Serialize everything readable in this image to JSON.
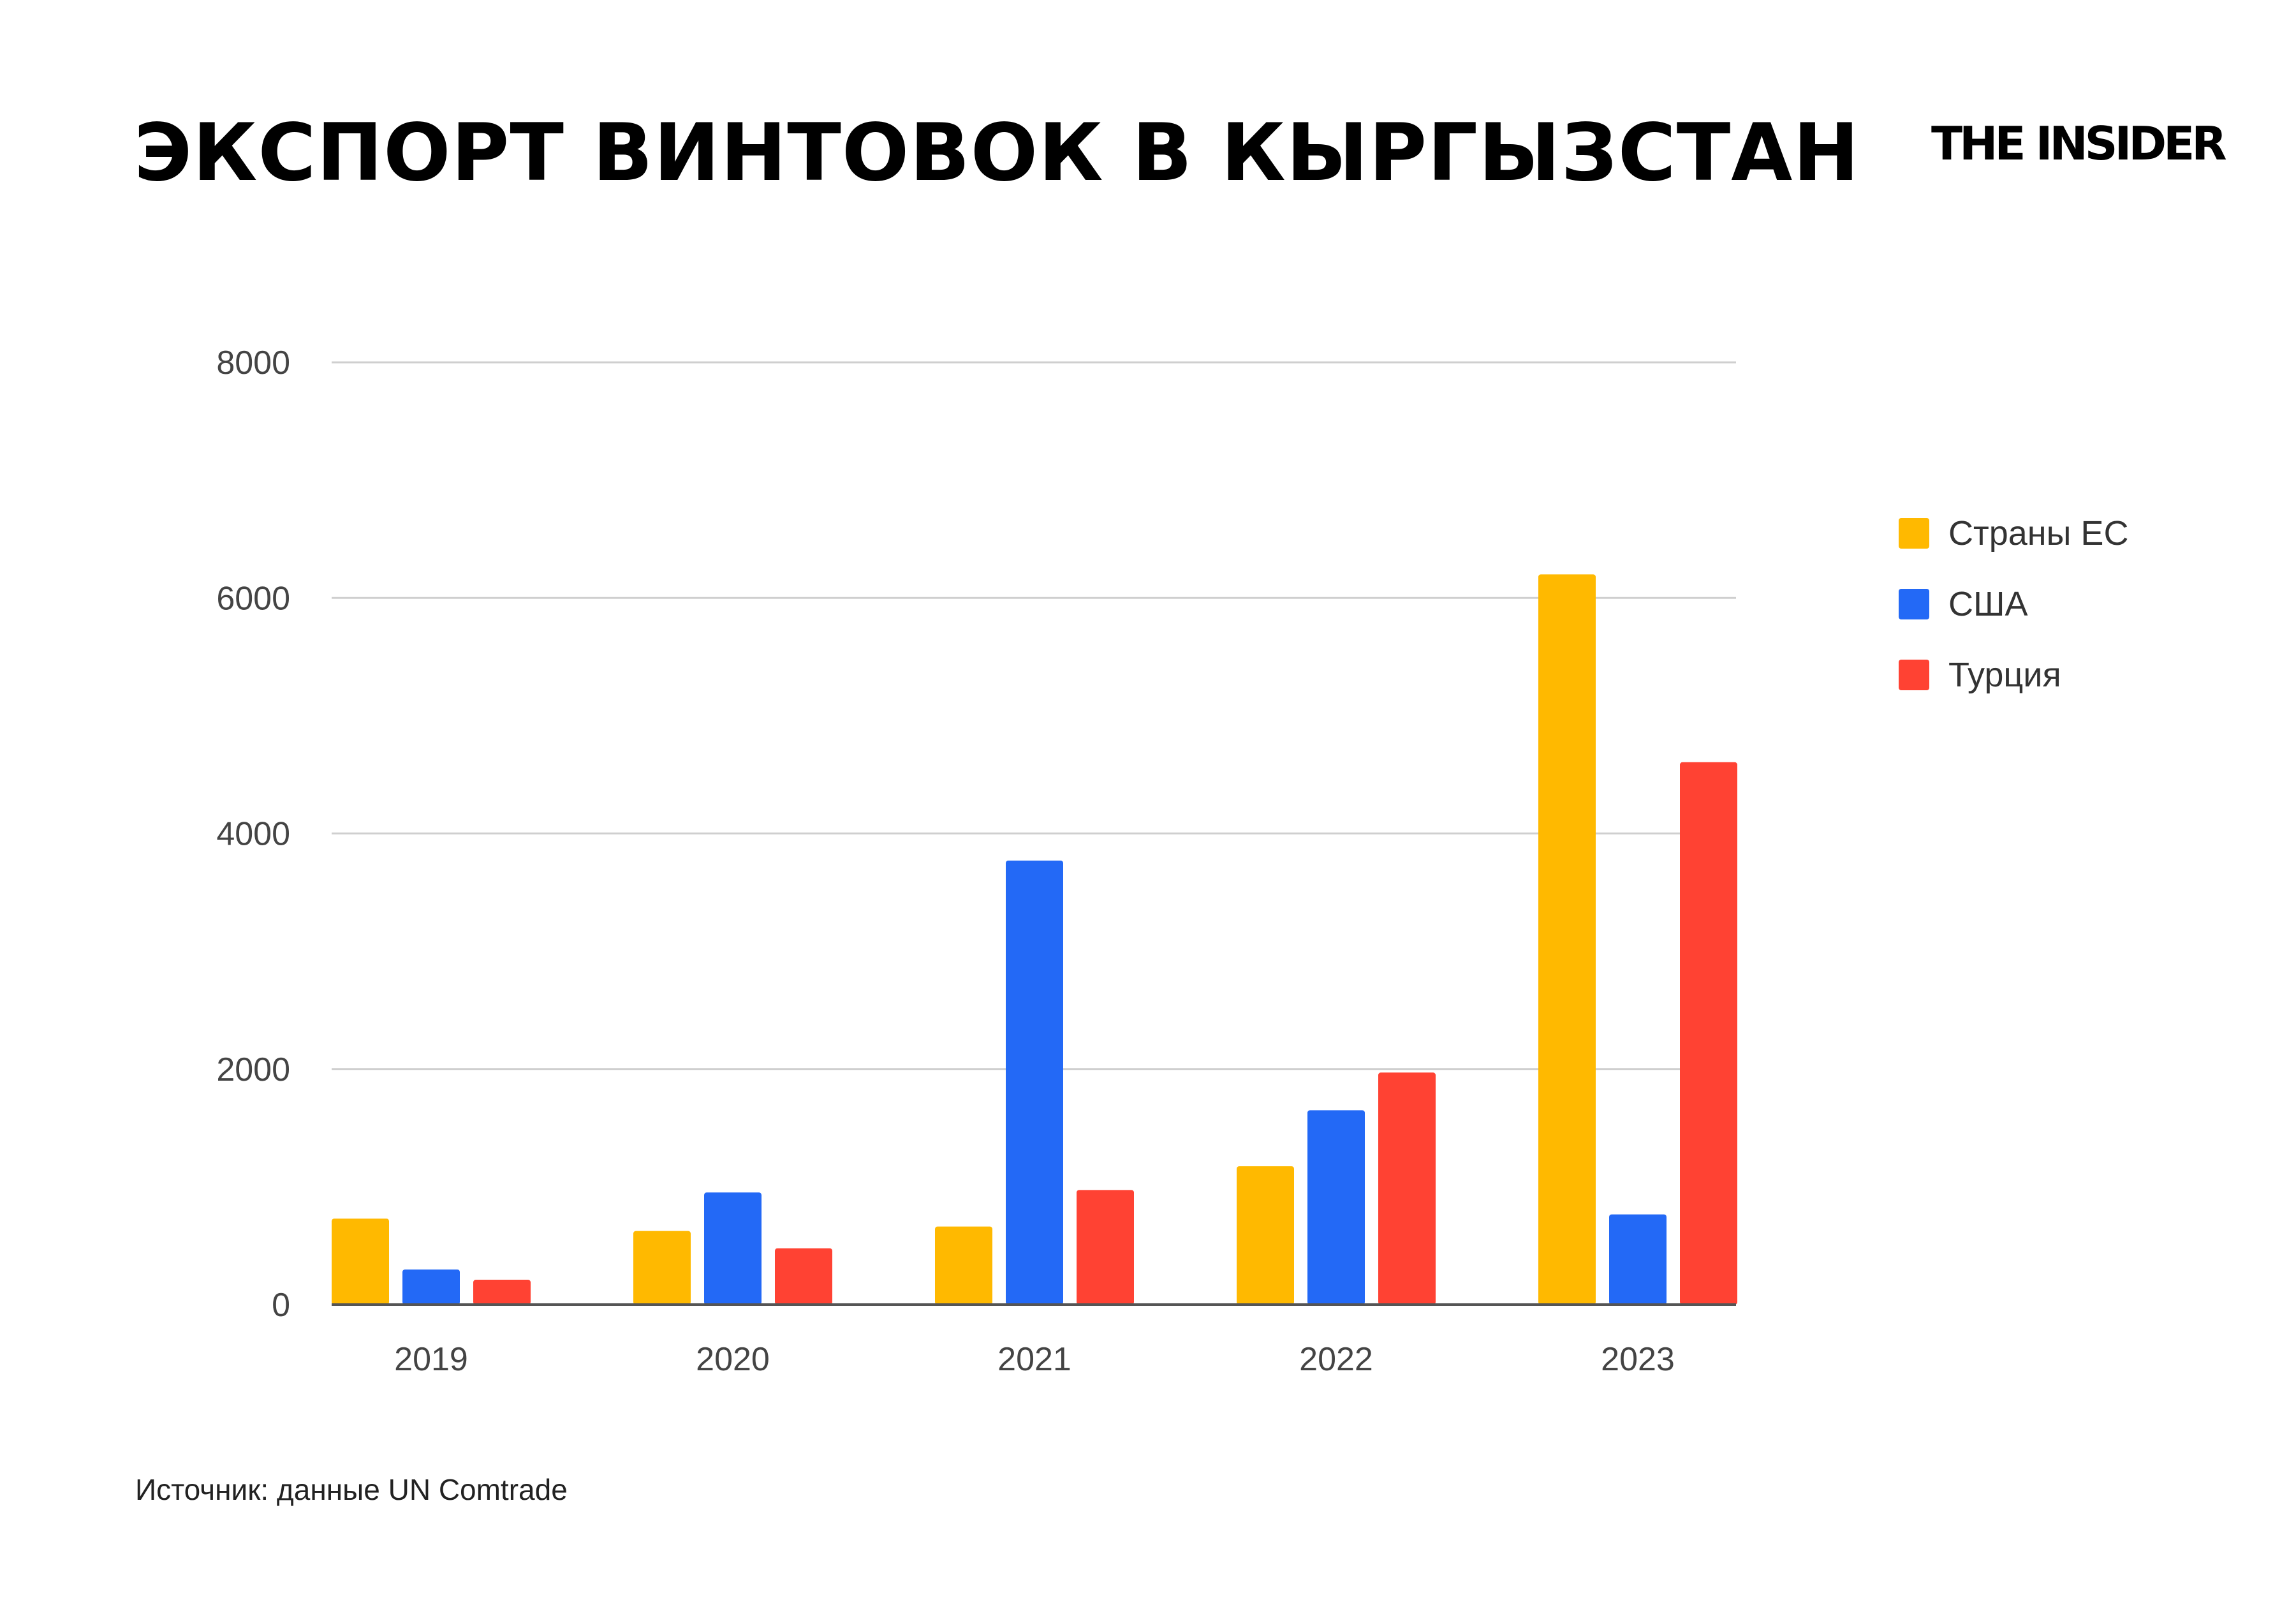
{
  "title": "ЭКСПОРТ ВИНТОВОК В КЫРГЫЗСТАН",
  "logo": "THE INSIDER",
  "source": "Источник: данные UN Comtrade",
  "chart_data": {
    "type": "bar",
    "title": "",
    "xlabel": "",
    "ylabel": "",
    "categories": [
      "2019",
      "2020",
      "2021",
      "2022",
      "2023"
    ],
    "ylim": [
      0,
      8000
    ],
    "yticks": [
      "0",
      "2000",
      "4000",
      "6000",
      "8000"
    ],
    "grid": true,
    "legend_position": "right",
    "series": [
      {
        "name": "Страны ЕС",
        "color": "#FFB900",
        "values": [
          730,
          625,
          663,
          1175,
          6200
        ]
      },
      {
        "name": "США",
        "color": "#2369F6",
        "values": [
          298,
          952,
          3770,
          1650,
          766
        ]
      },
      {
        "name": "Турция",
        "color": "#FF4233",
        "values": [
          211,
          478,
          973,
          1970,
          4605
        ]
      }
    ]
  }
}
